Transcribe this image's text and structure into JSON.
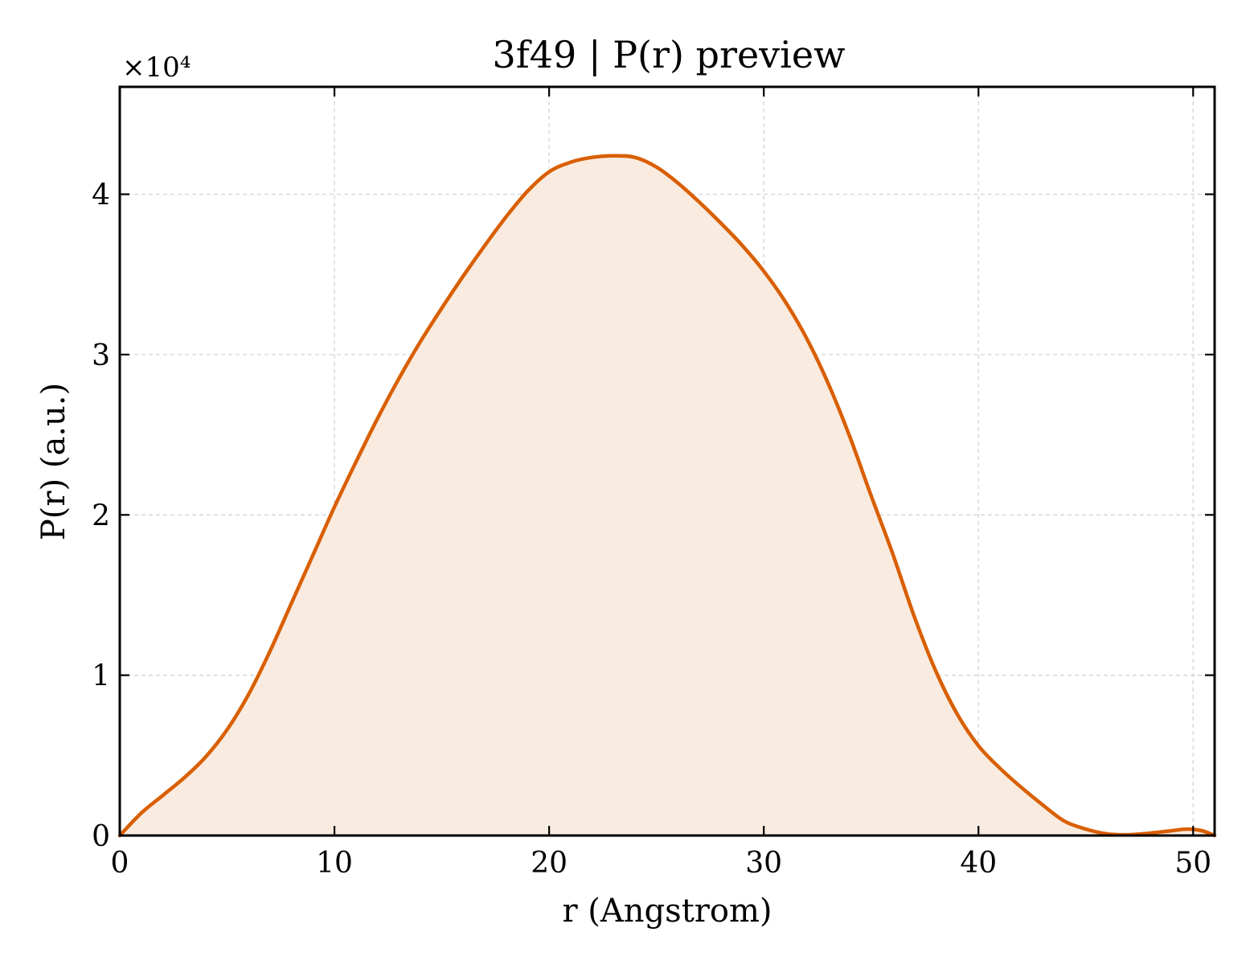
{
  "chart_data": {
    "type": "area",
    "title": "3f49 | P(r) preview",
    "xlabel": "r (Angstrom)",
    "ylabel": "P(r) (a.u.)",
    "y_offset_label": "×10⁴",
    "y_scale": 10000,
    "xlim": [
      0,
      51
    ],
    "ylim": [
      0,
      46700
    ],
    "x_ticks": [
      0,
      10,
      20,
      30,
      40,
      50
    ],
    "y_ticks": [
      0,
      10000,
      20000,
      30000,
      40000
    ],
    "y_tick_labels": [
      "0",
      "1",
      "2",
      "3",
      "4"
    ],
    "grid": true,
    "colors": {
      "line": "#d95f02",
      "fill": "#f9ebe0"
    },
    "series": [
      {
        "x": [
          0,
          1,
          2,
          3,
          4,
          5,
          6,
          7,
          8,
          9,
          10,
          11,
          12,
          13,
          14,
          15,
          16,
          17,
          18,
          19,
          20,
          21,
          22,
          23,
          24,
          25,
          26,
          27,
          28,
          29,
          30,
          31,
          32,
          33,
          34,
          35,
          36,
          37,
          38,
          39,
          40,
          41,
          42,
          43,
          44,
          45,
          46,
          47,
          48,
          49,
          49.7,
          50.4,
          51
        ],
        "y": [
          0,
          1400,
          2500,
          3600,
          4900,
          6600,
          8800,
          11500,
          14500,
          17500,
          20500,
          23300,
          26000,
          28500,
          30800,
          32900,
          34900,
          36800,
          38600,
          40200,
          41400,
          42000,
          42300,
          42400,
          42300,
          41700,
          40700,
          39500,
          38200,
          36800,
          35200,
          33300,
          31000,
          28200,
          24900,
          21200,
          17600,
          13700,
          10300,
          7600,
          5600,
          4200,
          3000,
          1900,
          900,
          400,
          100,
          50,
          150,
          300,
          400,
          300,
          0
        ]
      }
    ]
  }
}
